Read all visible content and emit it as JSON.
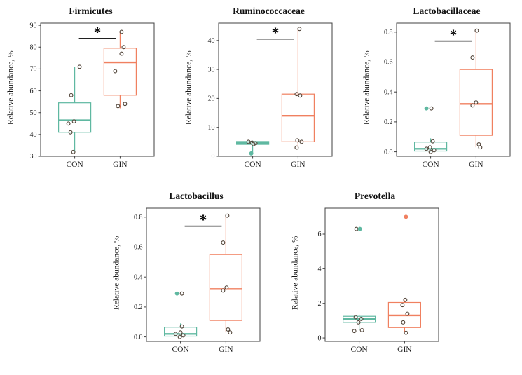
{
  "figure": {
    "background": "#ffffff"
  },
  "style": {
    "con_color": "#5fb8a1",
    "gin_color": "#f08060",
    "open_point_outline": "#4d4034",
    "axis_color": "#404040",
    "significance_color": "#000000"
  },
  "chart_data": [
    {
      "type": "boxplot",
      "title": "Firmicutes",
      "ylabel": "Relative abundance, %",
      "categories": [
        "CON",
        "GIN"
      ],
      "ylim": [
        30,
        91
      ],
      "yticks": [
        {
          "v": 30,
          "label": "30"
        },
        {
          "v": 40,
          "label": "40"
        },
        {
          "v": 50,
          "label": "50"
        },
        {
          "v": 60,
          "label": "60"
        },
        {
          "v": 70,
          "label": "70"
        },
        {
          "v": 80,
          "label": "80"
        },
        {
          "v": 90,
          "label": "90"
        }
      ],
      "significance": {
        "label": "*",
        "y": 84
      },
      "groups": [
        {
          "name": "CON",
          "color": "#5fb8a1",
          "box": {
            "min": 32,
            "q1": 41,
            "median": 46.5,
            "q3": 54.5,
            "max": 71
          },
          "points": [
            {
              "y": 71,
              "dx": 7,
              "filled": false
            },
            {
              "y": 58,
              "dx": -5,
              "filled": false
            },
            {
              "y": 46,
              "dx": -1,
              "filled": false
            },
            {
              "y": 45,
              "dx": -9,
              "filled": false
            },
            {
              "y": 41,
              "dx": -6,
              "filled": false
            },
            {
              "y": 32,
              "dx": -2,
              "filled": false
            }
          ]
        },
        {
          "name": "GIN",
          "color": "#f08060",
          "box": {
            "min": 52,
            "q1": 58,
            "median": 73,
            "q3": 79.5,
            "max": 87
          },
          "points": [
            {
              "y": 87,
              "dx": 2,
              "filled": false
            },
            {
              "y": 80,
              "dx": 5,
              "filled": false
            },
            {
              "y": 77,
              "dx": 2,
              "filled": false
            },
            {
              "y": 69,
              "dx": -7,
              "filled": false
            },
            {
              "y": 54,
              "dx": 7,
              "filled": false
            },
            {
              "y": 53,
              "dx": -3,
              "filled": false
            }
          ]
        }
      ]
    },
    {
      "type": "boxplot",
      "title": "Ruminococcaceae",
      "ylabel": "Relative abundance, %",
      "categories": [
        "CON",
        "GIN"
      ],
      "ylim": [
        0,
        46
      ],
      "yticks": [
        {
          "v": 0,
          "label": "0"
        },
        {
          "v": 10,
          "label": "10"
        },
        {
          "v": 20,
          "label": "20"
        },
        {
          "v": 30,
          "label": "30"
        },
        {
          "v": 40,
          "label": "40"
        }
      ],
      "significance": {
        "label": "*",
        "y": 40.5
      },
      "groups": [
        {
          "name": "CON",
          "color": "#5fb8a1",
          "box": {
            "min": 1,
            "q1": 4.1,
            "median": 4.6,
            "q3": 5.1,
            "max": 5.4
          },
          "points": [
            {
              "y": 5.0,
              "dx": -6,
              "filled": false
            },
            {
              "y": 4.7,
              "dx": -1,
              "filled": false
            },
            {
              "y": 4.5,
              "dx": 4,
              "filled": false
            },
            {
              "y": 4.2,
              "dx": 1,
              "filled": false
            },
            {
              "y": 1.0,
              "dx": -2,
              "filled": true
            }
          ]
        },
        {
          "name": "GIN",
          "color": "#f08060",
          "box": {
            "min": 3,
            "q1": 5,
            "median": 14,
            "q3": 21.5,
            "max": 44
          },
          "points": [
            {
              "y": 44,
              "dx": 2,
              "filled": false
            },
            {
              "y": 21.5,
              "dx": -2,
              "filled": false
            },
            {
              "y": 21,
              "dx": 3,
              "filled": false
            },
            {
              "y": 5.5,
              "dx": -1,
              "filled": false
            },
            {
              "y": 5,
              "dx": 5,
              "filled": false
            },
            {
              "y": 3,
              "dx": -2,
              "filled": false
            }
          ]
        }
      ]
    },
    {
      "type": "boxplot",
      "title": "Lactobacillaceae",
      "ylabel": "Relative abundance, %",
      "categories": [
        "CON",
        "GIN"
      ],
      "ylim": [
        -0.03,
        0.86
      ],
      "yticks": [
        {
          "v": 0,
          "label": "0.0"
        },
        {
          "v": 0.2,
          "label": "0.2"
        },
        {
          "v": 0.4,
          "label": "0.4"
        },
        {
          "v": 0.6,
          "label": "0.6"
        },
        {
          "v": 0.8,
          "label": "0.8"
        }
      ],
      "significance": {
        "label": "*",
        "y": 0.74
      },
      "groups": [
        {
          "name": "CON",
          "color": "#5fb8a1",
          "box": {
            "min": 0.0,
            "q1": 0.005,
            "median": 0.02,
            "q3": 0.065,
            "max": 0.09
          },
          "points": [
            {
              "y": 0.29,
              "dx": -6,
              "filled": true
            },
            {
              "y": 0.29,
              "dx": 1,
              "filled": false
            },
            {
              "y": 0.07,
              "dx": 3,
              "filled": false
            },
            {
              "y": 0.03,
              "dx": -1,
              "filled": false
            },
            {
              "y": 0.02,
              "dx": -6,
              "filled": false
            },
            {
              "y": 0.01,
              "dx": 5,
              "filled": false
            },
            {
              "y": 0.0,
              "dx": 0,
              "filled": false
            }
          ]
        },
        {
          "name": "GIN",
          "color": "#f08060",
          "box": {
            "min": 0.03,
            "q1": 0.11,
            "median": 0.32,
            "q3": 0.55,
            "max": 0.81
          },
          "points": [
            {
              "y": 0.81,
              "dx": 1,
              "filled": false
            },
            {
              "y": 0.63,
              "dx": -5,
              "filled": false
            },
            {
              "y": 0.33,
              "dx": 0,
              "filled": false
            },
            {
              "y": 0.31,
              "dx": -5,
              "filled": false
            },
            {
              "y": 0.05,
              "dx": 4,
              "filled": false
            },
            {
              "y": 0.03,
              "dx": 6,
              "filled": false
            }
          ]
        }
      ]
    },
    {
      "type": "boxplot",
      "title": "Lactobacillus",
      "ylabel": "Relative abundance, %",
      "categories": [
        "CON",
        "GIN"
      ],
      "ylim": [
        -0.03,
        0.86
      ],
      "yticks": [
        {
          "v": 0,
          "label": "0.0"
        },
        {
          "v": 0.2,
          "label": "0.2"
        },
        {
          "v": 0.4,
          "label": "0.4"
        },
        {
          "v": 0.6,
          "label": "0.6"
        },
        {
          "v": 0.8,
          "label": "0.8"
        }
      ],
      "significance": {
        "label": "*",
        "y": 0.74
      },
      "groups": [
        {
          "name": "CON",
          "color": "#5fb8a1",
          "box": {
            "min": 0.0,
            "q1": 0.005,
            "median": 0.02,
            "q3": 0.065,
            "max": 0.09
          },
          "points": [
            {
              "y": 0.29,
              "dx": -5,
              "filled": true
            },
            {
              "y": 0.29,
              "dx": 2,
              "filled": false
            },
            {
              "y": 0.07,
              "dx": 2,
              "filled": false
            },
            {
              "y": 0.03,
              "dx": 0,
              "filled": false
            },
            {
              "y": 0.02,
              "dx": -7,
              "filled": false
            },
            {
              "y": 0.01,
              "dx": 4,
              "filled": false
            },
            {
              "y": 0.0,
              "dx": -1,
              "filled": false
            }
          ]
        },
        {
          "name": "GIN",
          "color": "#f08060",
          "box": {
            "min": 0.03,
            "q1": 0.11,
            "median": 0.32,
            "q3": 0.55,
            "max": 0.81
          },
          "points": [
            {
              "y": 0.81,
              "dx": 2,
              "filled": false
            },
            {
              "y": 0.63,
              "dx": -4,
              "filled": false
            },
            {
              "y": 0.33,
              "dx": 1,
              "filled": false
            },
            {
              "y": 0.31,
              "dx": -4,
              "filled": false
            },
            {
              "y": 0.05,
              "dx": 3,
              "filled": false
            },
            {
              "y": 0.03,
              "dx": 6,
              "filled": false
            }
          ]
        }
      ]
    },
    {
      "type": "boxplot",
      "title": "Prevotella",
      "ylabel": "Relative abundance, %",
      "categories": [
        "CON",
        "GIN"
      ],
      "ylim": [
        -0.2,
        7.5
      ],
      "yticks": [
        {
          "v": 0,
          "label": "0"
        },
        {
          "v": 2,
          "label": "2"
        },
        {
          "v": 4,
          "label": "4"
        },
        {
          "v": 6,
          "label": "6"
        }
      ],
      "significance": null,
      "groups": [
        {
          "name": "CON",
          "color": "#5fb8a1",
          "box": {
            "min": 0.45,
            "q1": 0.9,
            "median": 1.1,
            "q3": 1.25,
            "max": 1.35
          },
          "points": [
            {
              "y": 6.3,
              "dx": -4,
              "filled": false
            },
            {
              "y": 6.3,
              "dx": 1,
              "filled": true
            },
            {
              "y": 1.2,
              "dx": -5,
              "filled": false
            },
            {
              "y": 1.1,
              "dx": 3,
              "filled": false
            },
            {
              "y": 0.9,
              "dx": -1,
              "filled": false
            },
            {
              "y": 0.45,
              "dx": 4,
              "filled": false
            },
            {
              "y": 0.4,
              "dx": -7,
              "filled": false
            }
          ]
        },
        {
          "name": "GIN",
          "color": "#f08060",
          "box": {
            "min": 0.3,
            "q1": 0.6,
            "median": 1.3,
            "q3": 2.05,
            "max": 2.2
          },
          "points": [
            {
              "y": 7.0,
              "dx": 2,
              "filled": true
            },
            {
              "y": 2.2,
              "dx": 1,
              "filled": false
            },
            {
              "y": 1.9,
              "dx": -3,
              "filled": false
            },
            {
              "y": 1.4,
              "dx": 4,
              "filled": false
            },
            {
              "y": 0.9,
              "dx": -2,
              "filled": false
            },
            {
              "y": 0.3,
              "dx": 2,
              "filled": false
            }
          ]
        }
      ]
    }
  ]
}
